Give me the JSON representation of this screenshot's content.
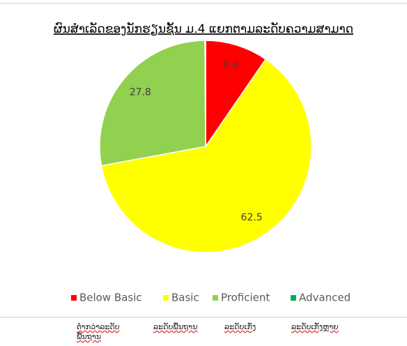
{
  "chart_data": {
    "type": "pie",
    "title": "ຜົນສຳເລັດຂອງນັກຮຽນຊັ້ນ ມ.4 ແຍກຕາມລະດັບຄວາມສາມາດ",
    "categories": [
      "Below Basic",
      "Basic",
      "Proficient",
      "Advanced"
    ],
    "values": [
      9.6,
      62.5,
      27.8,
      0.1
    ],
    "value_labels": [
      "9.6",
      "62.5",
      "27.8",
      null
    ],
    "colors": [
      "#ff0000",
      "#ffff00",
      "#92d050",
      "#00b050"
    ],
    "legend": "bottom"
  },
  "footer_labels": [
    "ຕ່ຳກວ່າລະດັບພື້ນຖານ",
    "ລະດັບພື້ນຖານ",
    "ລະດັບເກັ່ງ",
    "ລະດັບເກັ່ງຫຼາຍ"
  ]
}
